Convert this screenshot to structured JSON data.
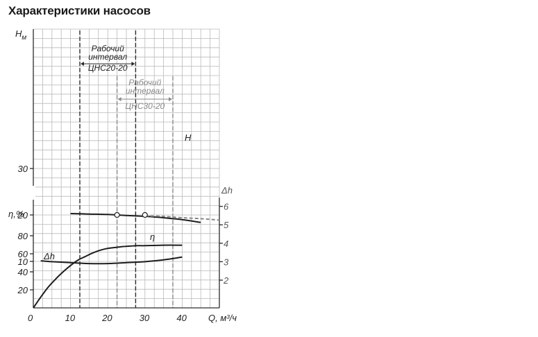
{
  "title": "Характеристики насосов",
  "chart_data": {
    "type": "line",
    "xlabel": "Q, м³/ч",
    "x_ticks": [
      0,
      10,
      20,
      30,
      40
    ],
    "xlim": [
      0,
      50
    ],
    "head_axis": {
      "label": "H",
      "label_sub": "м",
      "ticks": [
        10,
        20,
        30
      ],
      "ylim": [
        0,
        40
      ]
    },
    "eff_axis": {
      "label": "η,%",
      "ticks": [
        20,
        40,
        60,
        80
      ],
      "ylim": [
        0,
        90
      ]
    },
    "npsh_axis": {
      "label": "Δh",
      "ticks": [
        2,
        3,
        4,
        5,
        6
      ],
      "ylim": [
        1,
        6.5
      ]
    },
    "series": [
      {
        "name": "H",
        "axis": "head",
        "style": "solid",
        "x": [
          10,
          15,
          20,
          25,
          30,
          35,
          40,
          45
        ],
        "y": [
          20.3,
          20.2,
          20.1,
          19.9,
          19.7,
          19.4,
          19.0,
          18.4
        ]
      },
      {
        "name": "H",
        "axis": "head",
        "style": "dashed",
        "x": [
          30,
          35,
          40,
          45,
          50
        ],
        "y": [
          19.8,
          19.7,
          19.4,
          19.2,
          18.9
        ]
      },
      {
        "name": "η",
        "axis": "eff",
        "style": "solid",
        "x": [
          0,
          2,
          4,
          6,
          8,
          10,
          12,
          14,
          16,
          18,
          20,
          22,
          24,
          26,
          28,
          30,
          35,
          40
        ],
        "y": [
          0,
          12,
          23,
          32,
          40,
          47,
          53,
          57,
          61,
          64,
          66,
          67,
          68,
          68.5,
          69,
          69,
          69.5,
          69.5
        ]
      },
      {
        "name": "Δh",
        "axis": "npsh",
        "style": "solid",
        "x": [
          2,
          5,
          10,
          15,
          20,
          25,
          30,
          35,
          40
        ],
        "y": [
          3.05,
          3.0,
          2.95,
          2.9,
          2.9,
          2.95,
          3.0,
          3.1,
          3.25
        ]
      }
    ],
    "markers": [
      {
        "x": 22.5,
        "y": 20.0
      },
      {
        "x": 30.0,
        "y": 20.0
      }
    ],
    "intervals": [
      {
        "line1": "Рабочий",
        "line2": "интервал",
        "model": "ЦНС20-20",
        "x_from": 12.5,
        "x_to": 27.5,
        "style": "dark"
      },
      {
        "line1": "Рабочий",
        "line2": "интервал",
        "model": "ЦНС30-20",
        "x_from": 22.5,
        "x_to": 37.5,
        "style": "gray"
      }
    ],
    "curve_labels": {
      "H": "H",
      "eta": "η",
      "dh": "Δh"
    },
    "grid": true
  }
}
